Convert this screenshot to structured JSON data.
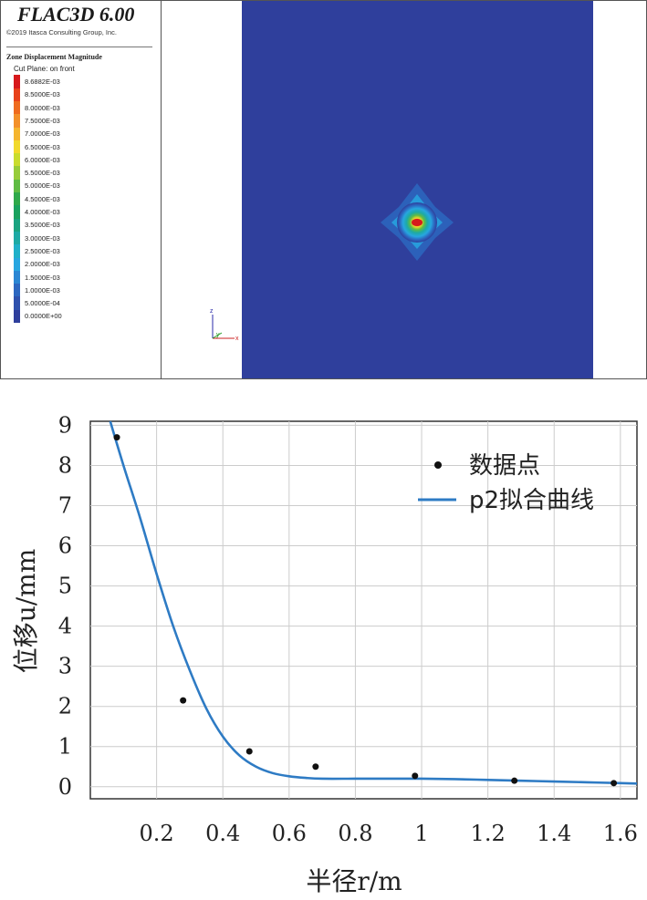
{
  "flac": {
    "title": "FLAC3D 6.00",
    "copyright": "©2019 Itasca Consulting Group, Inc.",
    "contour_label": "Zone Displacement Magnitude",
    "cut_plane": "Cut Plane: on front",
    "axis_z": "z",
    "axis_y": "y",
    "axis_x": "x",
    "model_color": "#2f3f9c",
    "legend": [
      {
        "label": "8.6882E-03",
        "color": "#d7191c"
      },
      {
        "label": "8.5000E-03",
        "color": "#e8411a"
      },
      {
        "label": "8.0000E-03",
        "color": "#ef6b1f"
      },
      {
        "label": "7.5000E-03",
        "color": "#f3902a"
      },
      {
        "label": "7.0000E-03",
        "color": "#f5b52f"
      },
      {
        "label": "6.5000E-03",
        "color": "#f1d92c"
      },
      {
        "label": "6.0000E-03",
        "color": "#c9dc2e"
      },
      {
        "label": "5.5000E-03",
        "color": "#97cc3a"
      },
      {
        "label": "5.0000E-03",
        "color": "#5fbb43"
      },
      {
        "label": "4.5000E-03",
        "color": "#2fa94a"
      },
      {
        "label": "4.0000E-03",
        "color": "#1aa25f"
      },
      {
        "label": "3.5000E-03",
        "color": "#1aa380"
      },
      {
        "label": "3.0000E-03",
        "color": "#1daaa5"
      },
      {
        "label": "2.5000E-03",
        "color": "#20b0c9"
      },
      {
        "label": "2.0000E-03",
        "color": "#27a6e0"
      },
      {
        "label": "1.5000E-03",
        "color": "#2a86d3"
      },
      {
        "label": "1.0000E-03",
        "color": "#2c67c0"
      },
      {
        "label": "5.0000E-04",
        "color": "#2e51ad"
      },
      {
        "label": "0.0000E+00",
        "color": "#2f3f9c"
      }
    ]
  },
  "chart_data": {
    "type": "scatter",
    "xlabel": "半径r/m",
    "ylabel": "位移u/mm",
    "xlim": [
      0.0,
      1.65
    ],
    "ylim": [
      -0.3,
      9.1
    ],
    "xticks": [
      0.2,
      0.4,
      0.6,
      0.8,
      1,
      1.2,
      1.4,
      1.6
    ],
    "xtick_labels": [
      "0.2",
      "0.4",
      "0.6",
      "0.8",
      "1",
      "1.2",
      "1.4",
      "1.6"
    ],
    "yticks": [
      0,
      1,
      2,
      3,
      4,
      5,
      6,
      7,
      8,
      9
    ],
    "ytick_labels": [
      "0",
      "1",
      "2",
      "3",
      "4",
      "5",
      "6",
      "7",
      "8",
      "9"
    ],
    "grid": true,
    "legend_position": "top-right",
    "series": [
      {
        "name": "数据点",
        "kind": "scatter",
        "color": "#111111",
        "x": [
          0.08,
          0.28,
          0.48,
          0.68,
          0.98,
          1.28,
          1.58
        ],
        "y": [
          8.7,
          2.15,
          0.88,
          0.5,
          0.27,
          0.15,
          0.09
        ]
      },
      {
        "name": "p2拟合曲线",
        "kind": "line",
        "color": "#2e7bc4",
        "x": [
          0.06,
          0.1,
          0.15,
          0.2,
          0.25,
          0.3,
          0.35,
          0.4,
          0.45,
          0.5,
          0.55,
          0.6,
          0.65,
          0.7,
          0.8,
          0.9,
          1.0,
          1.1,
          1.2,
          1.3,
          1.4,
          1.5,
          1.6,
          1.65
        ],
        "y": [
          9.1,
          8.0,
          6.7,
          5.3,
          4.0,
          2.9,
          1.95,
          1.25,
          0.78,
          0.5,
          0.34,
          0.26,
          0.22,
          0.2,
          0.2,
          0.2,
          0.2,
          0.19,
          0.17,
          0.15,
          0.13,
          0.11,
          0.09,
          0.08
        ]
      }
    ]
  }
}
